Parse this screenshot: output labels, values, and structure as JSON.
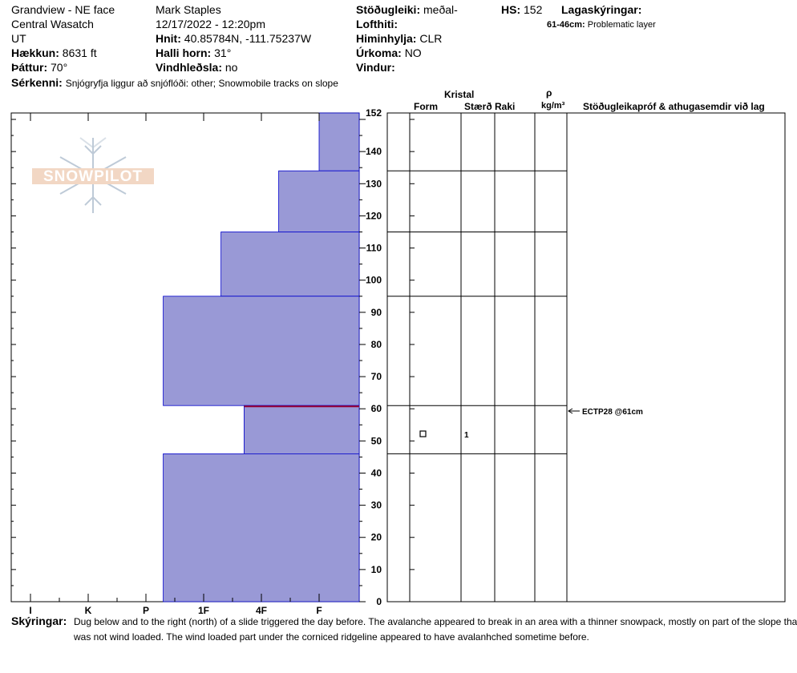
{
  "header": {
    "location": "Grandview - NE face",
    "range": "Central Wasatch",
    "state": "UT",
    "elevation_label": "Hækkun:",
    "elevation_value": "8631 ft",
    "aspect_label": "Þáttur:",
    "aspect_value": "70°",
    "observer": "Mark Staples",
    "datetime": "12/17/2022 - 12:20pm",
    "coords_label": "Hnit:",
    "coords_value": "40.85784N, -111.75237W",
    "slope_label": "Halli horn:",
    "slope_value": "31°",
    "wind_loading_label": "Vindhleðsla:",
    "wind_loading_value": "no",
    "stability_label": "Stöðugleiki:",
    "stability_value": "meðal-",
    "air_temp_label": "Lofthiti:",
    "sky_label": "Himinhylja:",
    "sky_value": "CLR",
    "precip_label": "Úrkoma:",
    "precip_value": "NO",
    "wind_label": "Vindur:",
    "hs_label": "HS:",
    "hs_value": "152",
    "layer_notes_label": "Lagaskýringar:",
    "layer_note_range": "61-46cm:",
    "layer_note_text": "Problematic layer",
    "features_label": "Sérkenni:",
    "features_value": "Snjógryfja liggur að snjóflóði: other; Snowmobile tracks on slope"
  },
  "logo_text": "SNOWPILOT",
  "columns": {
    "crystal": "Kristal",
    "form": "Form",
    "size": "Stærð",
    "moisture": "Raki",
    "rho": "ρ",
    "density_unit": "kg/m³",
    "tests": "Stöðugleikapróf & athugasemdir við lag"
  },
  "test_result": "ECTP28 @61cm",
  "crystal_size_value": "1",
  "comments_label": "Skýringar:",
  "comments_line1": "Dug below and to the right (north) of a slide triggered the day before. The avalanche appeared to break in an area with a thinner snowpack, mostly on part of the slope that",
  "comments_line2": "was not wind loaded. The wind loaded part under the corniced ridgeline appeared to have avalanhched sometime before.",
  "colors": {
    "layer_fill": "#9999d6",
    "layer_stroke": "#0000cc",
    "weak_layer_line": "#990033"
  },
  "chart_data": {
    "type": "bar",
    "orientation": "horizontal",
    "title": "",
    "xlabel": "",
    "ylabel": "",
    "x_categories": [
      "I",
      "K",
      "P",
      "1F",
      "4F",
      "F"
    ],
    "x_category_values": [
      6,
      5,
      4,
      3,
      2,
      1
    ],
    "ylim": [
      0,
      152
    ],
    "y_ticks": [
      0,
      10,
      20,
      30,
      40,
      50,
      60,
      70,
      80,
      90,
      100,
      110,
      120,
      130,
      140,
      152
    ],
    "layers": [
      {
        "top": 152,
        "bottom": 134,
        "hardness": "F",
        "value": 1
      },
      {
        "top": 134,
        "bottom": 115,
        "hardness": "F+",
        "value": 1.7
      },
      {
        "top": 115,
        "bottom": 95,
        "hardness": "4F",
        "value": 2.7
      },
      {
        "top": 95,
        "bottom": 61,
        "hardness": "1F",
        "value": 3.7
      },
      {
        "top": 61,
        "bottom": 46,
        "hardness": "4F-",
        "value": 2.3
      },
      {
        "top": 46,
        "bottom": 0,
        "hardness": "1F",
        "value": 3.7
      }
    ],
    "weak_layer_depth": 61
  }
}
